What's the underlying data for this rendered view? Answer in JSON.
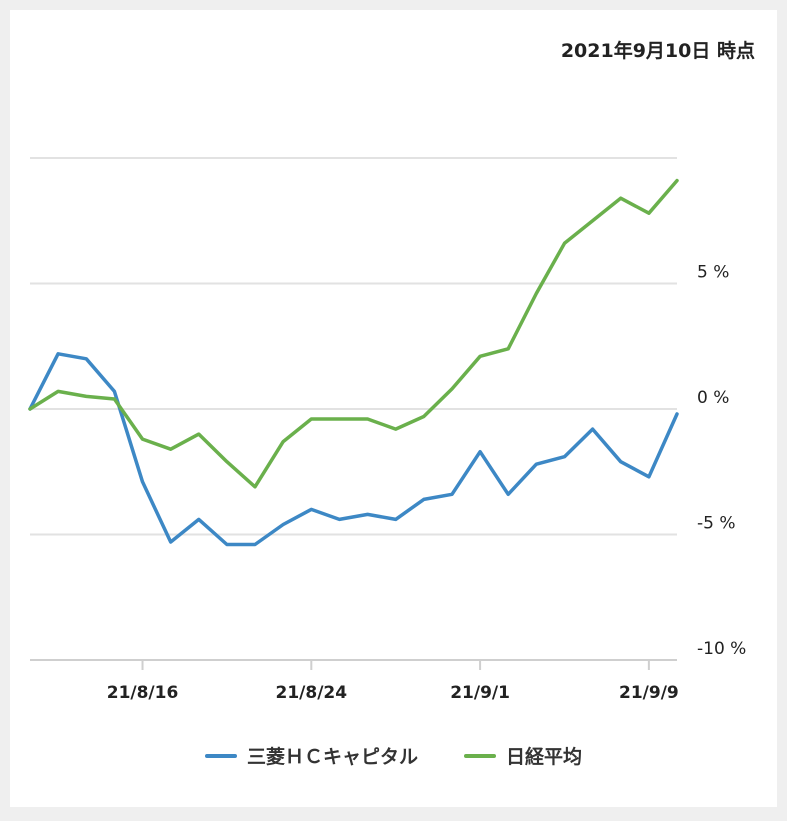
{
  "header": {
    "timestamp": "2021年9月10日 時点"
  },
  "colors": {
    "mitsubishi": "#3d88c5",
    "nikkei": "#6ab04c",
    "grid": "#e2e2e2",
    "axis": "#cfcfcf"
  },
  "chart_data": {
    "type": "line",
    "title": "",
    "x": [
      "21/8/10",
      "21/8/11",
      "21/8/12",
      "21/8/13",
      "21/8/16",
      "21/8/17",
      "21/8/18",
      "21/8/19",
      "21/8/20",
      "21/8/23",
      "21/8/24",
      "21/8/25",
      "21/8/26",
      "21/8/27",
      "21/8/30",
      "21/8/31",
      "21/9/1",
      "21/9/2",
      "21/9/3",
      "21/9/6",
      "21/9/7",
      "21/9/8",
      "21/9/9",
      "21/9/10"
    ],
    "series": [
      {
        "name": "三菱ＨＣキャピタル",
        "color": "#3d88c5",
        "values": [
          0,
          2.2,
          2.0,
          0.7,
          -2.9,
          -5.3,
          -4.4,
          -5.4,
          -5.4,
          -4.6,
          -4.0,
          -4.4,
          -4.2,
          -4.4,
          -3.6,
          -3.4,
          -1.7,
          -3.4,
          -2.2,
          -1.9,
          -0.8,
          -2.1,
          -2.7,
          -0.2
        ]
      },
      {
        "name": "日経平均",
        "color": "#6ab04c",
        "values": [
          0,
          0.7,
          0.5,
          0.4,
          -1.2,
          -1.6,
          -1.0,
          -2.1,
          -3.1,
          -1.3,
          -0.4,
          -0.4,
          -0.4,
          -0.8,
          -0.3,
          0.8,
          2.1,
          2.4,
          4.6,
          6.6,
          7.5,
          8.4,
          7.8,
          9.1
        ]
      }
    ],
    "x_ticks": [
      "21/8/16",
      "21/8/24",
      "21/9/1",
      "21/9/9"
    ],
    "y_ticks": [
      5,
      0,
      -5,
      -10
    ],
    "y_tick_labels": [
      "5 %",
      "0 %",
      "-5 %",
      "-10 %"
    ],
    "ylim": [
      -10,
      10
    ],
    "grid": true,
    "legend_position": "bottom"
  }
}
